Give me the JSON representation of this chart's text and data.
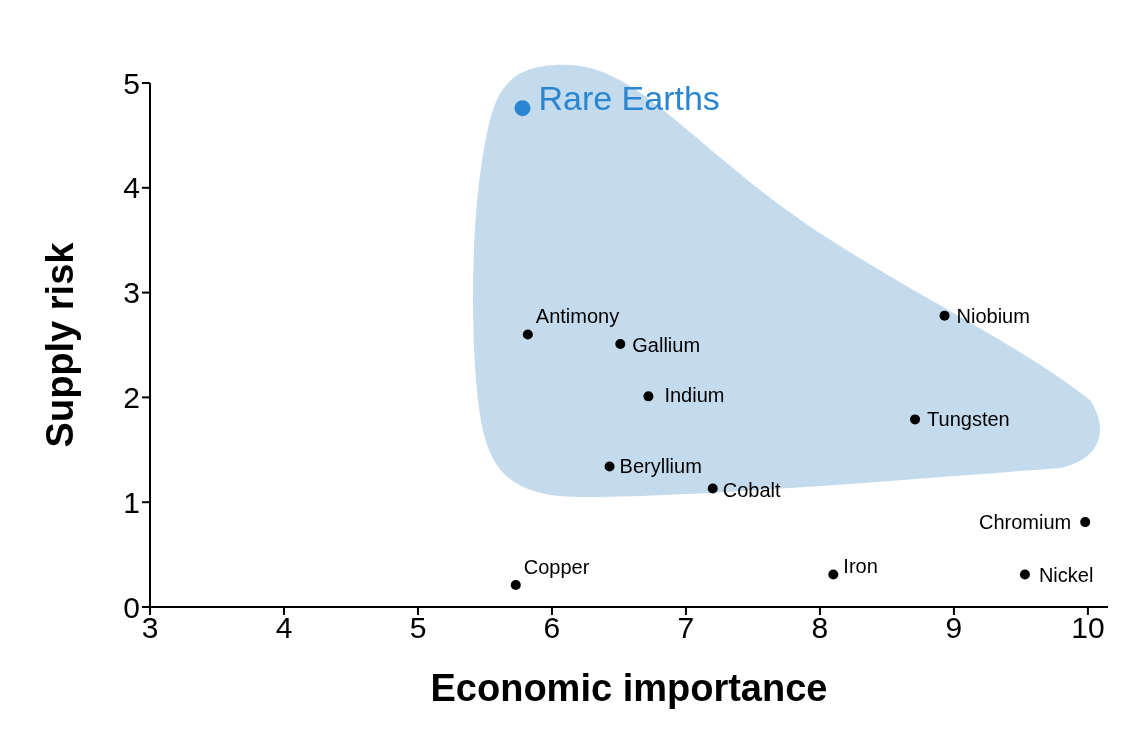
{
  "chart_data": {
    "type": "scatter",
    "xlabel": "Economic importance",
    "ylabel": "Supply risk",
    "xlim": [
      3,
      10.15
    ],
    "xticks": [
      3,
      4,
      5,
      6,
      7,
      8,
      9,
      10
    ],
    "ylim": [
      0,
      5
    ],
    "yticks": [
      0,
      1,
      2,
      3,
      4,
      5
    ],
    "marker": "circle",
    "series": [
      {
        "name": "Rare Earths",
        "color": "#2a86d0",
        "x": [
          5.78
        ],
        "values": [
          4.76
        ]
      },
      {
        "name": "Antimony",
        "color": "#000000",
        "x": [
          5.82
        ],
        "values": [
          2.6
        ]
      },
      {
        "name": "Gallium",
        "color": "#000000",
        "x": [
          6.51
        ],
        "values": [
          2.51
        ]
      },
      {
        "name": "Indium",
        "color": "#000000",
        "x": [
          6.72
        ],
        "values": [
          2.01
        ]
      },
      {
        "name": "Beryllium",
        "color": "#000000",
        "x": [
          6.43
        ],
        "values": [
          1.34
        ]
      },
      {
        "name": "Cobalt",
        "color": "#000000",
        "x": [
          7.2
        ],
        "values": [
          1.13
        ]
      },
      {
        "name": "Niobium",
        "color": "#000000",
        "x": [
          8.93
        ],
        "values": [
          2.78
        ]
      },
      {
        "name": "Tungsten",
        "color": "#000000",
        "x": [
          8.71
        ],
        "values": [
          1.79
        ]
      },
      {
        "name": "Chromium",
        "color": "#000000",
        "x": [
          9.98
        ],
        "values": [
          0.81
        ]
      },
      {
        "name": "Nickel",
        "color": "#000000",
        "x": [
          9.53
        ],
        "values": [
          0.31
        ]
      },
      {
        "name": "Iron",
        "color": "#000000",
        "x": [
          8.1
        ],
        "values": [
          0.31
        ]
      },
      {
        "name": "Copper",
        "color": "#000000",
        "x": [
          5.73
        ],
        "values": [
          0.21
        ]
      }
    ]
  }
}
